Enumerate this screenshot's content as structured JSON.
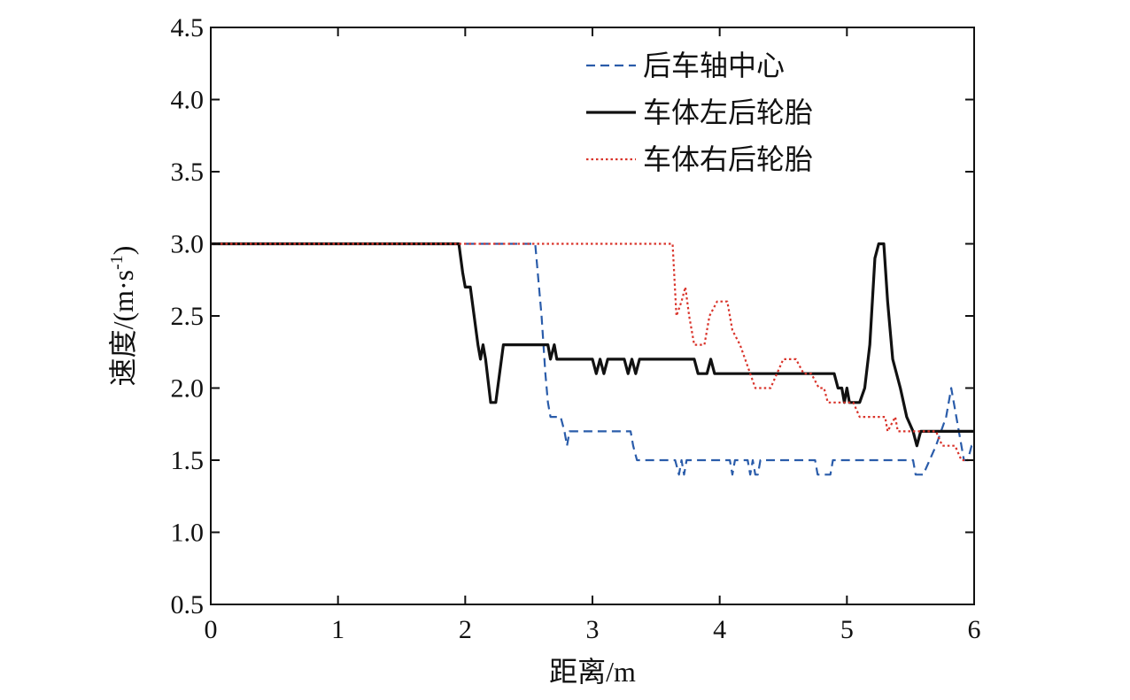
{
  "chart_data": {
    "type": "line",
    "title": "",
    "xlabel": "距离/m",
    "ylabel": "速度/(m·s",
    "ylabel_sup": "-1",
    "ylabel_close": ")",
    "xlim": [
      0,
      6
    ],
    "ylim": [
      0.5,
      4.5
    ],
    "x_ticks": [
      0,
      1,
      2,
      3,
      4,
      5,
      6
    ],
    "x_tick_labels": [
      "0",
      "1",
      "2",
      "3",
      "4",
      "5",
      "6"
    ],
    "y_ticks": [
      0.5,
      1.0,
      1.5,
      2.0,
      2.5,
      3.0,
      3.5,
      4.0,
      4.5
    ],
    "y_tick_labels": [
      "0.5",
      "1.0",
      "1.5",
      "2.0",
      "2.5",
      "3.0",
      "3.5",
      "4.0",
      "4.5"
    ],
    "grid": false,
    "legend_position": "top-right",
    "series": [
      {
        "name": "后车轴中心",
        "color": "#2a5caa",
        "style": "dashed",
        "points": [
          [
            0,
            3.0
          ],
          [
            2.55,
            3.0
          ],
          [
            2.58,
            2.7
          ],
          [
            2.6,
            2.5
          ],
          [
            2.63,
            2.1
          ],
          [
            2.65,
            1.9
          ],
          [
            2.67,
            1.8
          ],
          [
            2.75,
            1.8
          ],
          [
            2.78,
            1.7
          ],
          [
            2.8,
            1.6
          ],
          [
            2.82,
            1.7
          ],
          [
            3.3,
            1.7
          ],
          [
            3.32,
            1.6
          ],
          [
            3.35,
            1.5
          ],
          [
            3.65,
            1.5
          ],
          [
            3.68,
            1.4
          ],
          [
            3.7,
            1.5
          ],
          [
            3.72,
            1.4
          ],
          [
            3.74,
            1.5
          ],
          [
            4.08,
            1.5
          ],
          [
            4.1,
            1.4
          ],
          [
            4.12,
            1.5
          ],
          [
            4.22,
            1.5
          ],
          [
            4.24,
            1.4
          ],
          [
            4.26,
            1.5
          ],
          [
            4.28,
            1.4
          ],
          [
            4.3,
            1.4
          ],
          [
            4.32,
            1.5
          ],
          [
            4.75,
            1.5
          ],
          [
            4.77,
            1.4
          ],
          [
            4.87,
            1.4
          ],
          [
            4.89,
            1.5
          ],
          [
            5.52,
            1.5
          ],
          [
            5.54,
            1.4
          ],
          [
            5.6,
            1.4
          ],
          [
            5.65,
            1.5
          ],
          [
            5.7,
            1.6
          ],
          [
            5.74,
            1.7
          ],
          [
            5.78,
            1.8
          ],
          [
            5.8,
            1.9
          ],
          [
            5.82,
            2.0
          ],
          [
            5.84,
            1.9
          ],
          [
            5.86,
            1.8
          ],
          [
            5.88,
            1.7
          ],
          [
            5.9,
            1.6
          ],
          [
            5.92,
            1.5
          ],
          [
            5.95,
            1.5
          ],
          [
            5.98,
            1.6
          ],
          [
            6.0,
            1.6
          ]
        ]
      },
      {
        "name": "车体左后轮胎",
        "color": "#111111",
        "style": "solid",
        "points": [
          [
            0,
            3.0
          ],
          [
            1.95,
            3.0
          ],
          [
            1.98,
            2.8
          ],
          [
            2.0,
            2.7
          ],
          [
            2.04,
            2.7
          ],
          [
            2.07,
            2.5
          ],
          [
            2.1,
            2.3
          ],
          [
            2.12,
            2.2
          ],
          [
            2.14,
            2.3
          ],
          [
            2.16,
            2.2
          ],
          [
            2.2,
            1.9
          ],
          [
            2.24,
            1.9
          ],
          [
            2.3,
            2.3
          ],
          [
            2.65,
            2.3
          ],
          [
            2.67,
            2.2
          ],
          [
            2.7,
            2.3
          ],
          [
            2.72,
            2.2
          ],
          [
            3.0,
            2.2
          ],
          [
            3.03,
            2.1
          ],
          [
            3.06,
            2.2
          ],
          [
            3.09,
            2.1
          ],
          [
            3.12,
            2.2
          ],
          [
            3.25,
            2.2
          ],
          [
            3.28,
            2.1
          ],
          [
            3.31,
            2.2
          ],
          [
            3.34,
            2.1
          ],
          [
            3.37,
            2.2
          ],
          [
            3.8,
            2.2
          ],
          [
            3.83,
            2.1
          ],
          [
            3.9,
            2.1
          ],
          [
            3.93,
            2.2
          ],
          [
            3.96,
            2.1
          ],
          [
            4.9,
            2.1
          ],
          [
            4.93,
            2.0
          ],
          [
            4.96,
            2.0
          ],
          [
            4.98,
            1.9
          ],
          [
            5.0,
            2.0
          ],
          [
            5.02,
            1.9
          ],
          [
            5.1,
            1.9
          ],
          [
            5.14,
            2.0
          ],
          [
            5.18,
            2.3
          ],
          [
            5.22,
            2.9
          ],
          [
            5.25,
            3.0
          ],
          [
            5.29,
            3.0
          ],
          [
            5.32,
            2.6
          ],
          [
            5.36,
            2.2
          ],
          [
            5.42,
            2.0
          ],
          [
            5.47,
            1.8
          ],
          [
            5.52,
            1.7
          ],
          [
            5.55,
            1.6
          ],
          [
            5.58,
            1.7
          ],
          [
            6.0,
            1.7
          ]
        ]
      },
      {
        "name": "车体右后轮胎",
        "color": "#d9342b",
        "style": "dotted",
        "points": [
          [
            0,
            3.0
          ],
          [
            3.63,
            3.0
          ],
          [
            3.66,
            2.5
          ],
          [
            3.7,
            2.6
          ],
          [
            3.73,
            2.7
          ],
          [
            3.76,
            2.5
          ],
          [
            3.8,
            2.3
          ],
          [
            3.88,
            2.3
          ],
          [
            3.92,
            2.5
          ],
          [
            3.98,
            2.6
          ],
          [
            4.06,
            2.6
          ],
          [
            4.1,
            2.4
          ],
          [
            4.16,
            2.3
          ],
          [
            4.2,
            2.2
          ],
          [
            4.24,
            2.1
          ],
          [
            4.28,
            2.0
          ],
          [
            4.4,
            2.0
          ],
          [
            4.45,
            2.1
          ],
          [
            4.5,
            2.2
          ],
          [
            4.6,
            2.2
          ],
          [
            4.66,
            2.1
          ],
          [
            4.72,
            2.1
          ],
          [
            4.78,
            2.0
          ],
          [
            4.82,
            2.0
          ],
          [
            4.85,
            1.9
          ],
          [
            5.05,
            1.9
          ],
          [
            5.1,
            1.8
          ],
          [
            5.3,
            1.8
          ],
          [
            5.32,
            1.7
          ],
          [
            5.38,
            1.8
          ],
          [
            5.4,
            1.7
          ],
          [
            5.7,
            1.7
          ],
          [
            5.75,
            1.6
          ],
          [
            5.85,
            1.6
          ],
          [
            5.9,
            1.5
          ],
          [
            6.0,
            1.5
          ]
        ]
      }
    ]
  }
}
